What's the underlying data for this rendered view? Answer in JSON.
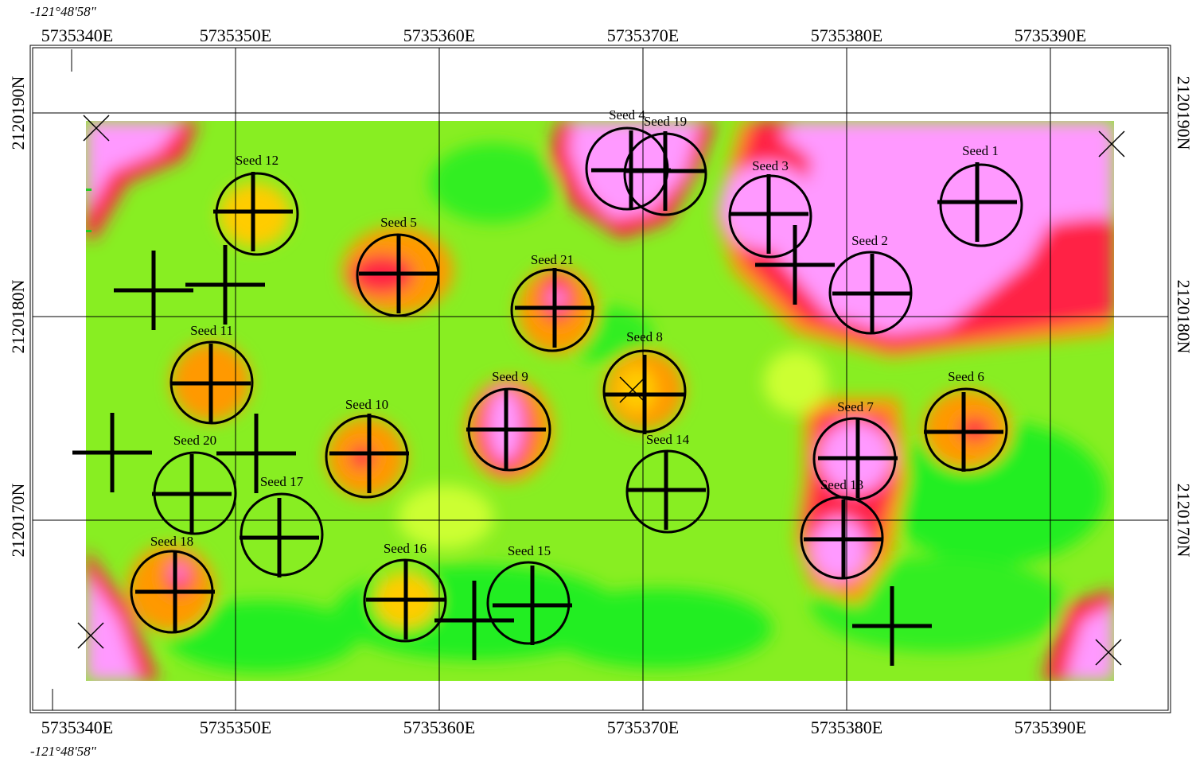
{
  "map": {
    "coord_top_left": "-121°48'58\"",
    "coord_bottom_left": "-121°48'58\"",
    "eastings": [
      "5735340E",
      "5735350E",
      "5735360E",
      "5735370E",
      "5735380E",
      "5735390E"
    ],
    "northings": [
      "2120190N",
      "2120180N",
      "2120170N"
    ],
    "colors": {
      "background_high": "#ff99ff",
      "edge": "#ff0044",
      "mid": "#ff9900",
      "warm": "#ffff00",
      "low": "#88ee22",
      "lowest": "#00ee00"
    },
    "seeds": [
      {
        "label": "Seed 1"
      },
      {
        "label": "Seed 2"
      },
      {
        "label": "Seed 3"
      },
      {
        "label": "Seed 4"
      },
      {
        "label": "Seed 5"
      },
      {
        "label": "Seed 6"
      },
      {
        "label": "Seed 7"
      },
      {
        "label": "Seed 8"
      },
      {
        "label": "Seed 9"
      },
      {
        "label": "Seed 10"
      },
      {
        "label": "Seed 11"
      },
      {
        "label": "Seed 12"
      },
      {
        "label": "Seed 13"
      },
      {
        "label": "Seed 14"
      },
      {
        "label": "Seed 15"
      },
      {
        "label": "Seed 16"
      },
      {
        "label": "Seed 17"
      },
      {
        "label": "Seed 18"
      },
      {
        "label": "Seed 19"
      },
      {
        "label": "Seed 20"
      },
      {
        "label": "Seed 21"
      }
    ]
  }
}
